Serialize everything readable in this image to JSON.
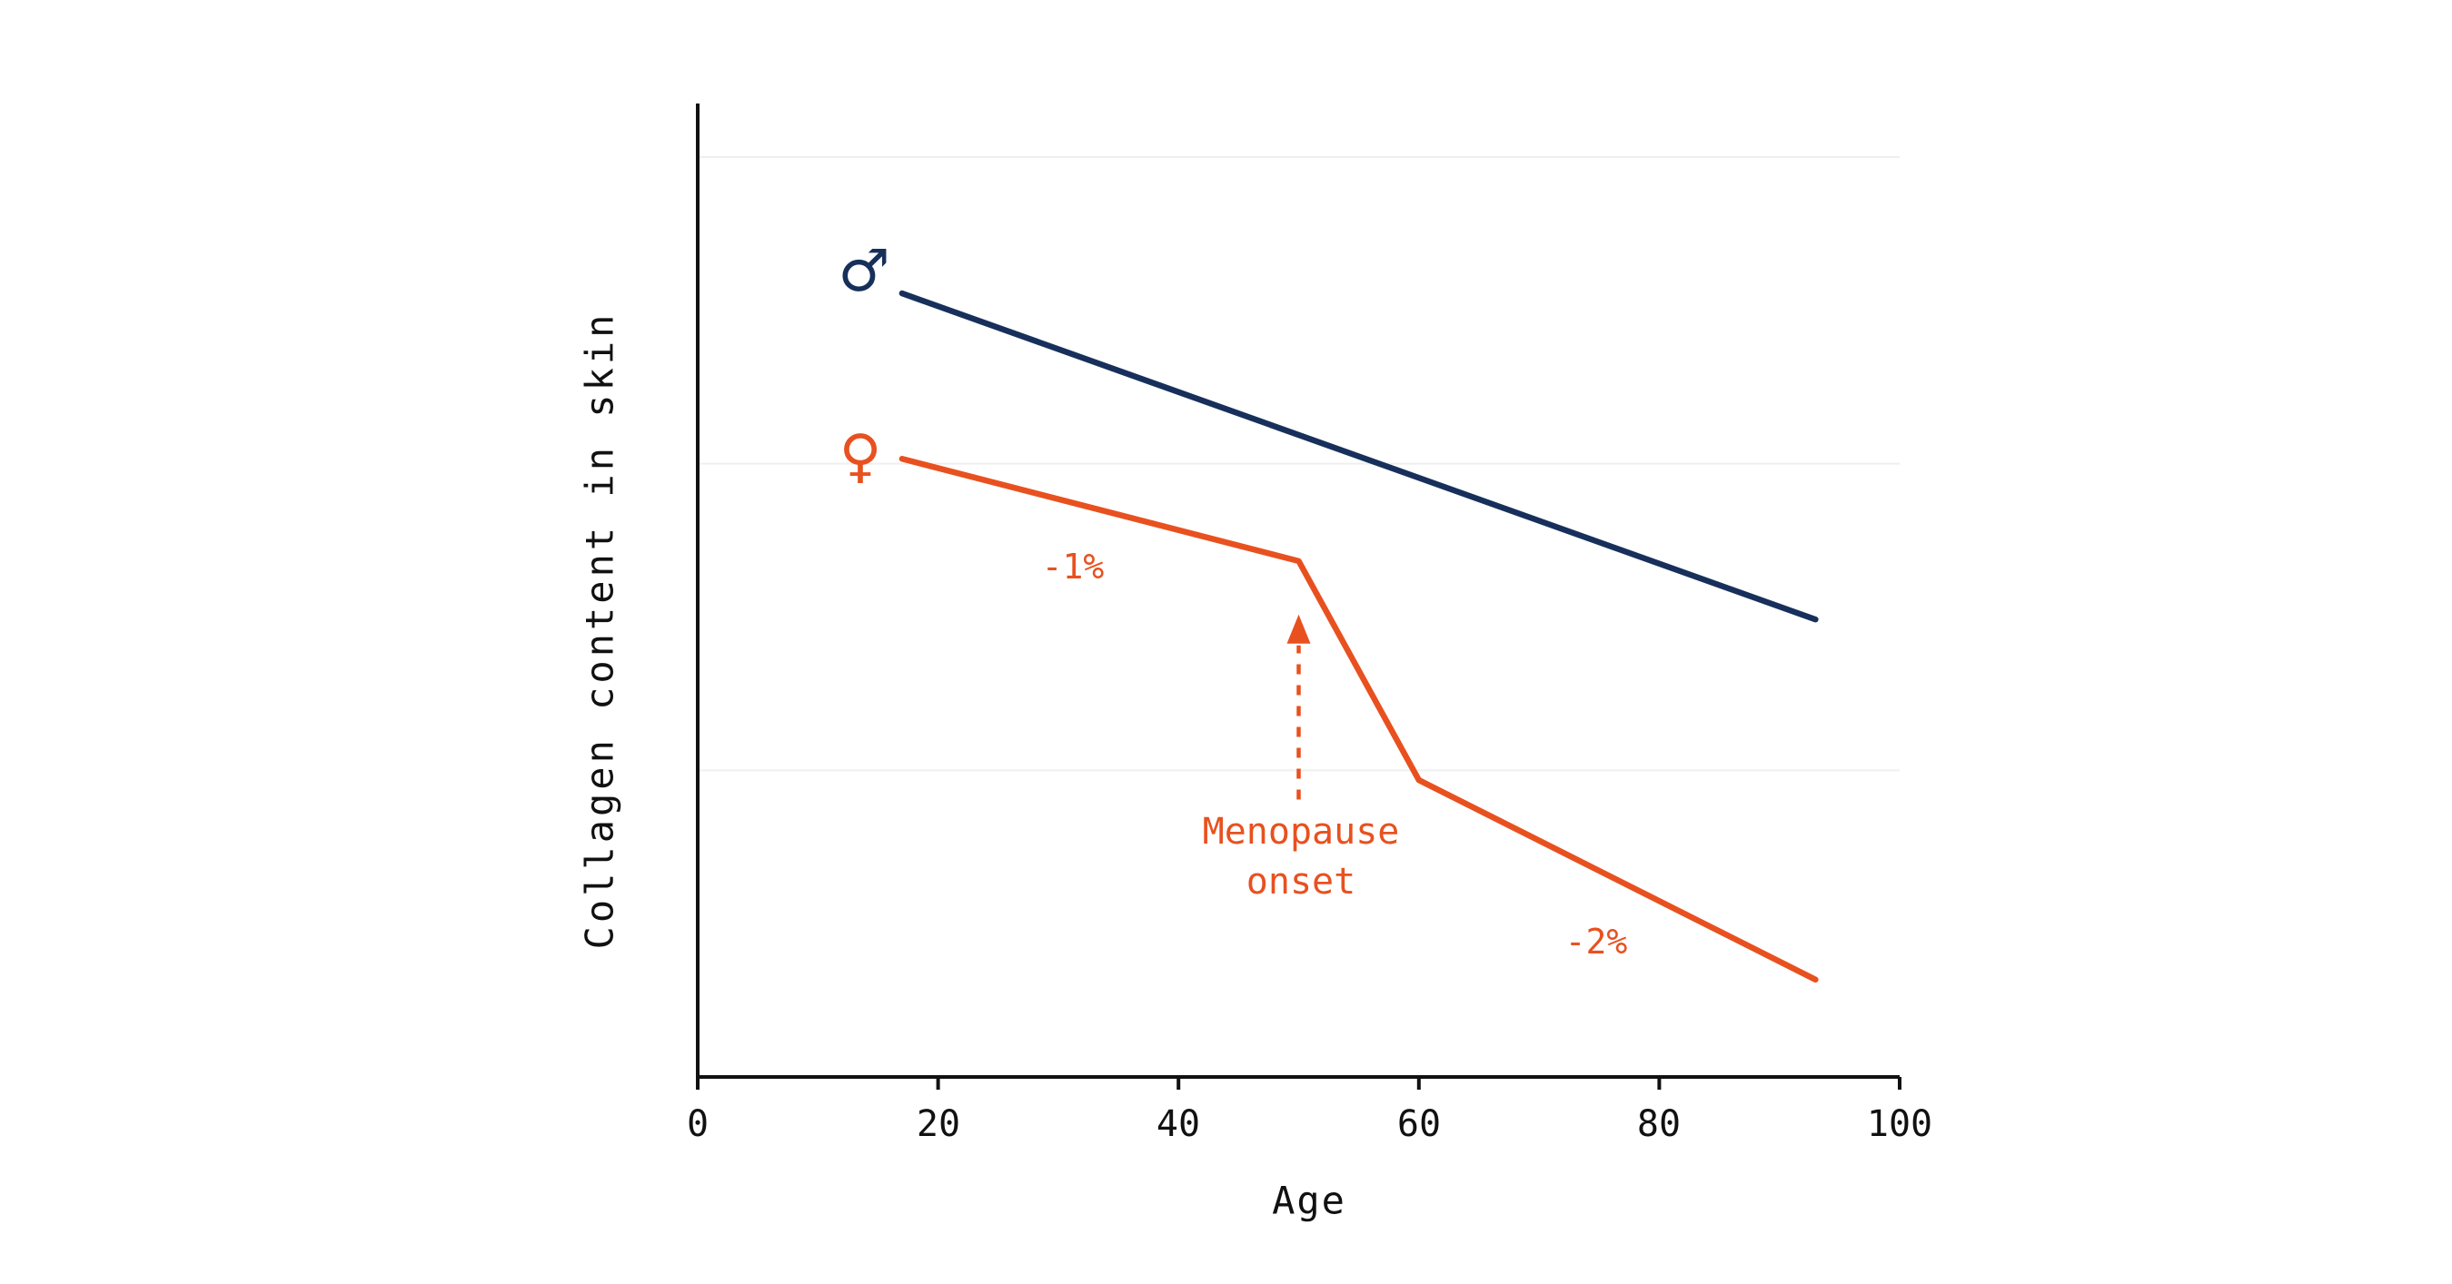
{
  "chart_data": {
    "type": "line",
    "title": "",
    "xlabel": "Age",
    "ylabel": "Collagen content in skin",
    "xlim": [
      0,
      100
    ],
    "ylim": [
      0,
      100
    ],
    "x_ticks": [
      0,
      20,
      40,
      60,
      80,
      100
    ],
    "y_gridlines": [
      31.5,
      63,
      94.5
    ],
    "grid": "horizontal-only",
    "legend": "none",
    "axis_color": "#111111",
    "gridline_color": "#efefef",
    "series": [
      {
        "name": "male",
        "symbol": "♂",
        "color": "#17305b",
        "points": [
          [
            17,
            80.5
          ],
          [
            93,
            47
          ]
        ]
      },
      {
        "name": "female",
        "symbol": "♀",
        "color": "#e8511f",
        "points": [
          [
            17,
            63.5
          ],
          [
            50,
            53
          ],
          [
            60,
            30.5
          ],
          [
            93,
            10
          ]
        ]
      }
    ],
    "annotations": {
      "seg1_rate": "-1%",
      "seg2_rate": "-2%",
      "menopause_line1": "Menopause",
      "menopause_line2": "onset",
      "arrow": {
        "x": 50,
        "y_from": 28.5,
        "y_to": 47.5
      }
    }
  }
}
